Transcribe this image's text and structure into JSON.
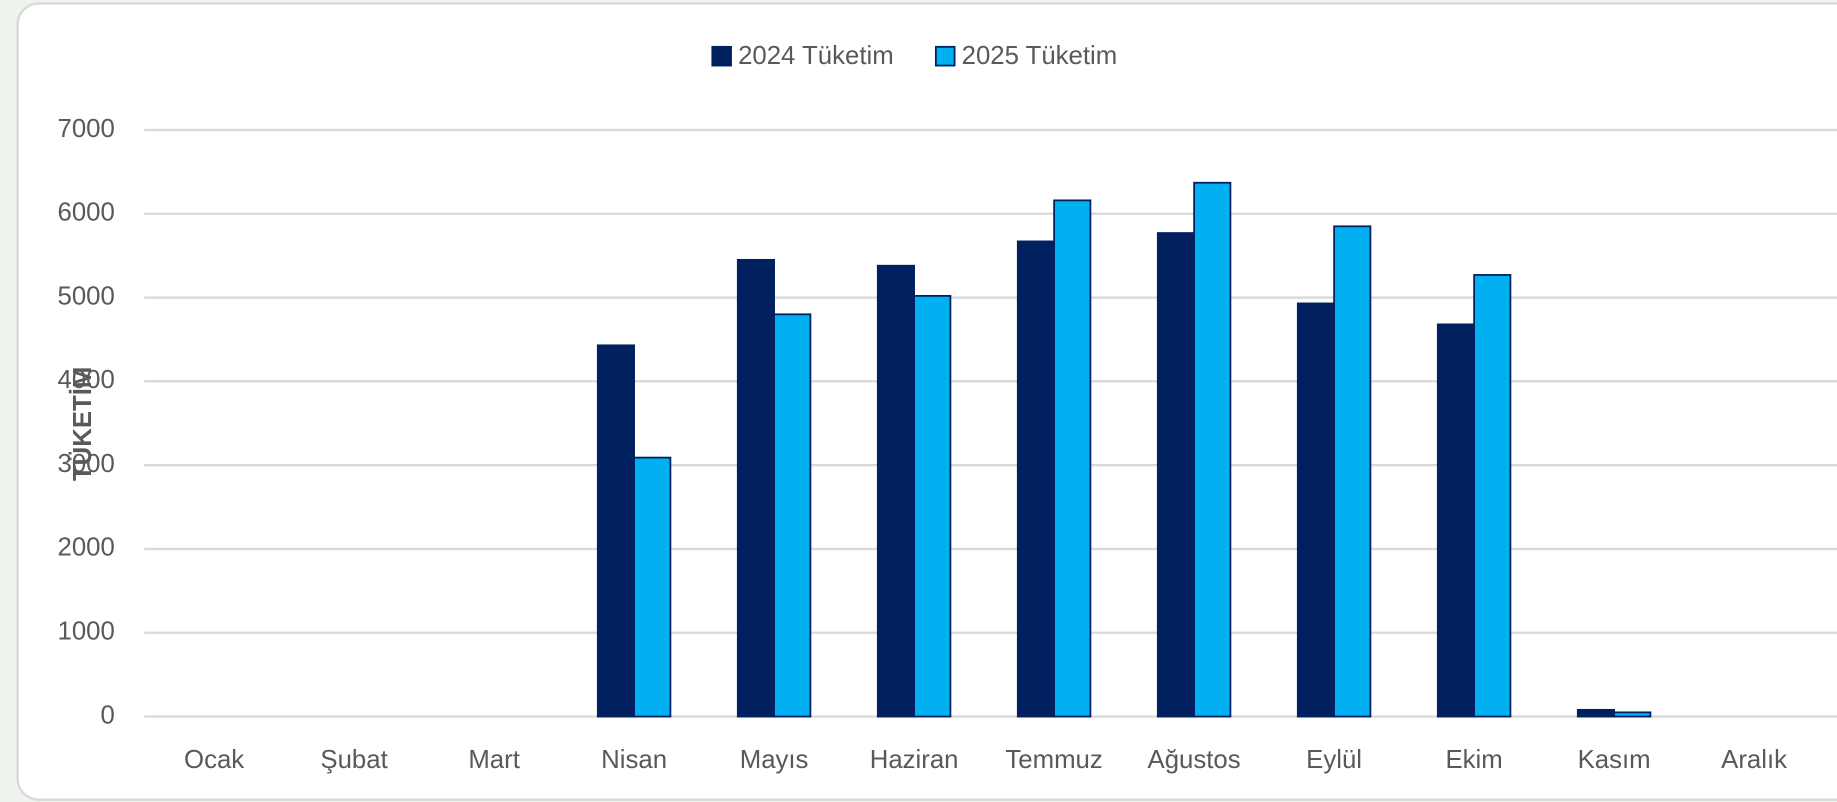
{
  "chart_data": {
    "type": "bar",
    "y_label": "TÜKETİM",
    "categories": [
      "Ocak",
      "Şubat",
      "Mart",
      "Nisan",
      "Mayıs",
      "Haziran",
      "Temmuz",
      "Ağustos",
      "Eylül",
      "Ekim",
      "Kasım",
      "Aralık"
    ],
    "series": [
      {
        "name": "2024 Tüketim",
        "color": "#002060",
        "values": [
          null,
          null,
          null,
          4430,
          5450,
          5380,
          5670,
          5770,
          4930,
          4680,
          80,
          null
        ]
      },
      {
        "name": "2025 Tüketim",
        "color": "#00b0f0",
        "values": [
          null,
          null,
          null,
          3090,
          4800,
          5020,
          6160,
          6370,
          5850,
          5270,
          50,
          null
        ]
      }
    ],
    "ylim": [
      0,
      7000
    ],
    "yticks": [
      0,
      1000,
      2000,
      3000,
      4000,
      5000,
      6000,
      7000
    ],
    "grid": true,
    "legend": "top"
  }
}
